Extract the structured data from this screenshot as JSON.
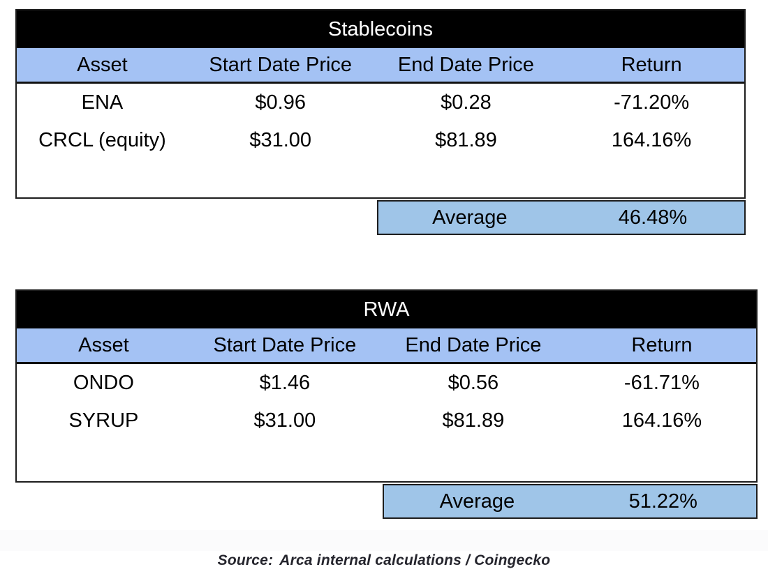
{
  "colors": {
    "title_bar_bg": "#000000",
    "title_bar_text": "#ffffff",
    "column_header_bg": "#a4c2f4",
    "average_row_bg": "#9fc5e8",
    "table_border": "#1d1d1d",
    "body_text": "#000000"
  },
  "tables": [
    {
      "title": "Stablecoins",
      "columns": [
        "Asset",
        "Start Date Price",
        "End Date Price",
        "Return"
      ],
      "rows": [
        {
          "asset": "ENA",
          "start": "$0.96",
          "end": "$0.28",
          "return": "-71.20%"
        },
        {
          "asset": "CRCL (equity)",
          "start": "$31.00",
          "end": "$81.89",
          "return": "164.16%"
        }
      ],
      "average_label": "Average",
      "average_value": "46.48%"
    },
    {
      "title": "RWA",
      "columns": [
        "Asset",
        "Start Date Price",
        "End Date Price",
        "Return"
      ],
      "rows": [
        {
          "asset": "ONDO",
          "start": "$1.46",
          "end": "$0.56",
          "return": "-61.71%"
        },
        {
          "asset": "SYRUP",
          "start": "$31.00",
          "end": "$81.89",
          "return": "164.16%"
        }
      ],
      "average_label": "Average",
      "average_value": "51.22%"
    }
  ],
  "source": {
    "label": "Source:",
    "text": "Arca internal calculations / Coingecko"
  }
}
